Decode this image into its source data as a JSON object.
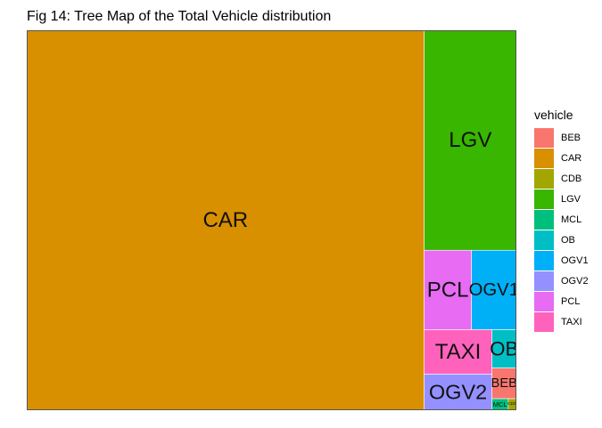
{
  "chart_data": {
    "type": "treemap",
    "title": "Fig 14: Tree Map of the Total Vehicle distribution",
    "legend": {
      "title": "vehicle",
      "position": "right"
    },
    "items": [
      {
        "name": "CAR",
        "value": 80.4,
        "color": "#D89000"
      },
      {
        "name": "LGV",
        "value": 10.8,
        "color": "#39B600"
      },
      {
        "name": "PCL",
        "value": 2.0,
        "color": "#E76BF3"
      },
      {
        "name": "OGV1",
        "value": 1.9,
        "color": "#00B0F6"
      },
      {
        "name": "TAXI",
        "value": 1.6,
        "color": "#FF62BC"
      },
      {
        "name": "OGV2",
        "value": 1.3,
        "color": "#9590FF"
      },
      {
        "name": "OB",
        "value": 0.5,
        "color": "#00BFC4"
      },
      {
        "name": "BEB",
        "value": 0.4,
        "color": "#F8766D"
      },
      {
        "name": "MCL",
        "value": 0.1,
        "color": "#00BF7D"
      },
      {
        "name": "CDB",
        "value": 0.05,
        "color": "#A3A500"
      }
    ],
    "legend_order": [
      "BEB",
      "CAR",
      "CDB",
      "LGV",
      "MCL",
      "OB",
      "OGV1",
      "OGV2",
      "PCL",
      "TAXI"
    ]
  }
}
